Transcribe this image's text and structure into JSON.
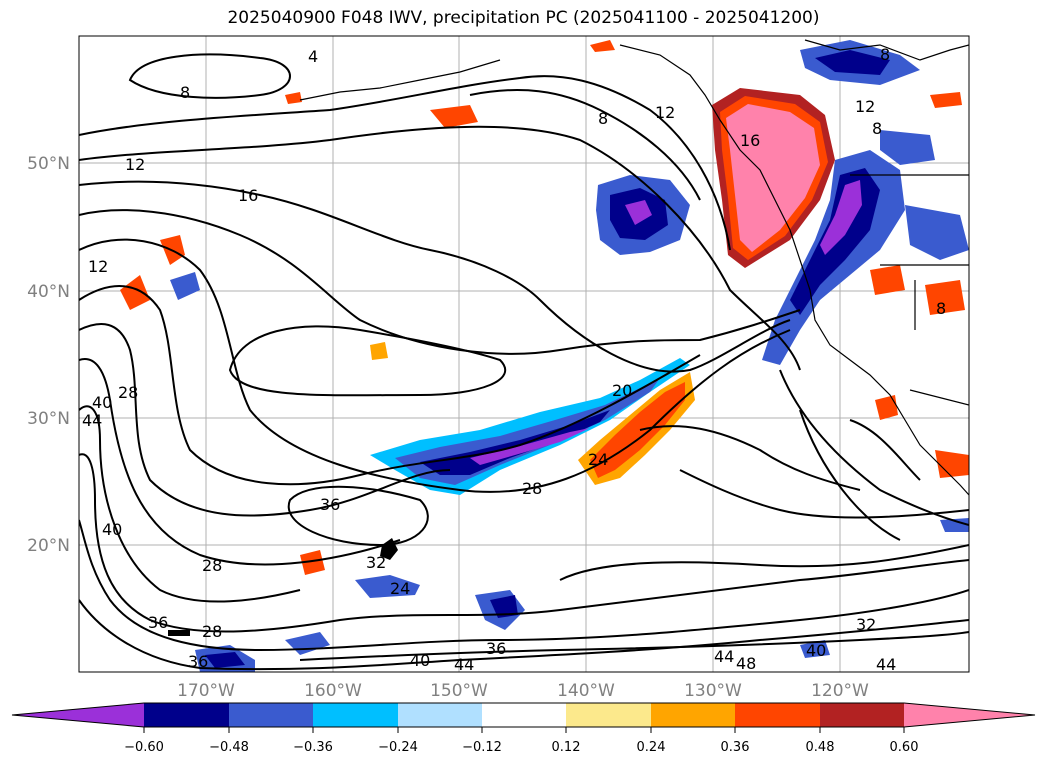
{
  "title": "2025040900 F048 IWV, precipitation PC (2025041100 - 2025041200)",
  "lat_labels": [
    "50°N",
    "40°N",
    "30°N",
    "20°N"
  ],
  "lon_labels": [
    "170°W",
    "160°W",
    "150°W",
    "140°W",
    "130°W",
    "120°W"
  ],
  "contour_labels": [
    "4",
    "8",
    "8",
    "12",
    "12",
    "12",
    "16",
    "16",
    "12",
    "8",
    "28",
    "40",
    "44",
    "36",
    "28",
    "40",
    "28",
    "36",
    "36",
    "24",
    "32",
    "28",
    "24",
    "20",
    "40",
    "44",
    "36",
    "44",
    "48",
    "40",
    "44",
    "32",
    "8",
    "8"
  ],
  "colorbar": {
    "colors": [
      "#9b30d9",
      "#00008b",
      "#3a5bcf",
      "#00bfff",
      "#b0e0ff",
      "#ffffff",
      "#fce98c",
      "#ffa500",
      "#ff4500",
      "#b22222",
      "#ff82ab"
    ],
    "ticks": [
      "−0.60",
      "−0.48",
      "−0.36",
      "−0.24",
      "−0.12",
      "0.12",
      "0.24",
      "0.36",
      "0.48",
      "0.60"
    ]
  }
}
